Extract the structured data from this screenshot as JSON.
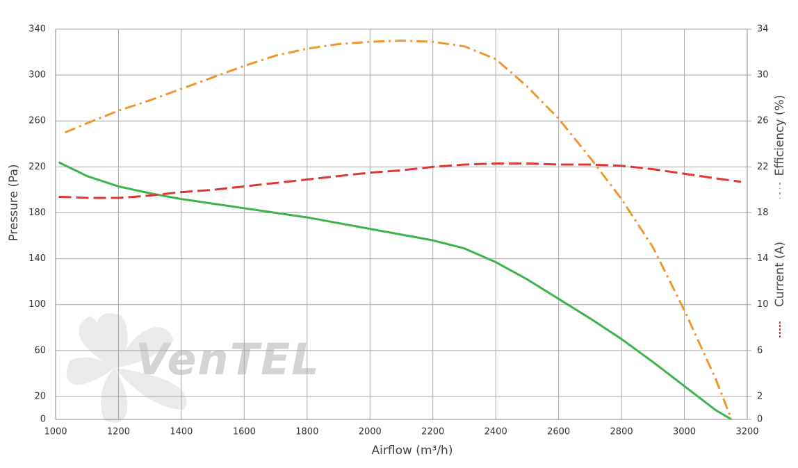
{
  "chart_data": {
    "type": "line",
    "watermark": "VenTEL",
    "xlabel": "Airflow (m³/h)",
    "ylabel": "Pressure (Pa)",
    "xlim": [
      1000,
      3200
    ],
    "xticks": [
      1000,
      1200,
      1400,
      1600,
      1800,
      2000,
      2200,
      2400,
      2600,
      2800,
      3000,
      3200
    ],
    "ylim": [
      0,
      340
    ],
    "yticks": [
      0,
      20,
      60,
      100,
      140,
      180,
      220,
      260,
      300,
      340
    ],
    "y2lim": [
      0,
      34
    ],
    "y2ticks": [
      0,
      2,
      6,
      10,
      14,
      18,
      22,
      26,
      30,
      34
    ],
    "grid": true,
    "series": [
      {
        "color": "#3cb44b",
        "dash": "solid",
        "x": [
          1010,
          1100,
          1200,
          1300,
          1400,
          1500,
          1600,
          1700,
          1800,
          1900,
          2000,
          2100,
          2200,
          2300,
          2400,
          2500,
          2600,
          2700,
          2800,
          2900,
          3000,
          3100,
          3150
        ],
        "values": [
          224,
          212,
          203,
          197,
          192,
          188,
          184,
          180,
          176,
          171,
          166,
          161,
          156,
          149,
          137,
          122,
          105,
          88,
          70,
          50,
          29,
          8,
          0
        ]
      },
      {
        "name": "Efficiency (%)",
        "color": "#f0962e",
        "dash": "dashdot",
        "axis": "y2",
        "x": [
          1030,
          1100,
          1200,
          1300,
          1400,
          1500,
          1600,
          1700,
          1800,
          1900,
          2000,
          2100,
          2200,
          2300,
          2400,
          2500,
          2600,
          2700,
          2800,
          2900,
          3000,
          3100,
          3150
        ],
        "values": [
          25,
          25.8,
          26.9,
          27.8,
          28.8,
          29.8,
          30.8,
          31.7,
          32.3,
          32.7,
          32.9,
          33.0,
          32.9,
          32.5,
          31.4,
          29.0,
          26.2,
          22.8,
          19.2,
          15,
          9.5,
          3.5,
          0
        ]
      },
      {
        "name": "Current (A)",
        "color": "#e03530",
        "dash": "dashed",
        "axis": "y2",
        "x": [
          1010,
          1100,
          1200,
          1300,
          1400,
          1500,
          1600,
          1700,
          1800,
          1900,
          2000,
          2100,
          2200,
          2300,
          2400,
          2500,
          2600,
          2700,
          2800,
          2900,
          3000,
          3100,
          3180
        ],
        "values": [
          19.4,
          19.3,
          19.3,
          19.5,
          19.8,
          20.0,
          20.3,
          20.6,
          20.9,
          21.2,
          21.5,
          21.7,
          22.0,
          22.2,
          22.3,
          22.3,
          22.2,
          22.2,
          22.1,
          21.8,
          21.4,
          21.0,
          20.7
        ]
      }
    ]
  }
}
